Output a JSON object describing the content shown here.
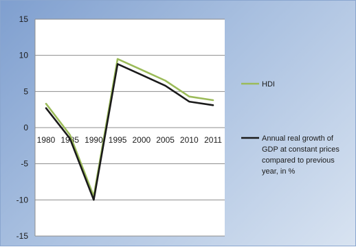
{
  "chart_data": {
    "type": "line",
    "title": "",
    "xlabel": "",
    "ylabel": "",
    "categories": [
      "1980",
      "1985",
      "1990",
      "1995",
      "2000",
      "2005",
      "2010",
      "2011"
    ],
    "ylim": [
      -15,
      15
    ],
    "yticks": [
      -15,
      -10,
      -5,
      0,
      5,
      10,
      15
    ],
    "grid": "horizontal",
    "legend_position": "right",
    "series": [
      {
        "name": "HDI",
        "color": "#9bbb59",
        "values": [
          3.3,
          -1.0,
          -9.5,
          9.5,
          8.0,
          6.5,
          4.3,
          3.8
        ]
      },
      {
        "name": "Annual real growth of GDP at constant prices compared to previous year, in %",
        "legend_lines": [
          "Annual real growth of",
          "GDP at constant prices",
          "compared to previous",
          "year, in %"
        ],
        "color": "#1a1a1a",
        "values": [
          2.7,
          -1.5,
          -10.0,
          8.8,
          7.3,
          5.8,
          3.6,
          3.1
        ]
      }
    ]
  }
}
